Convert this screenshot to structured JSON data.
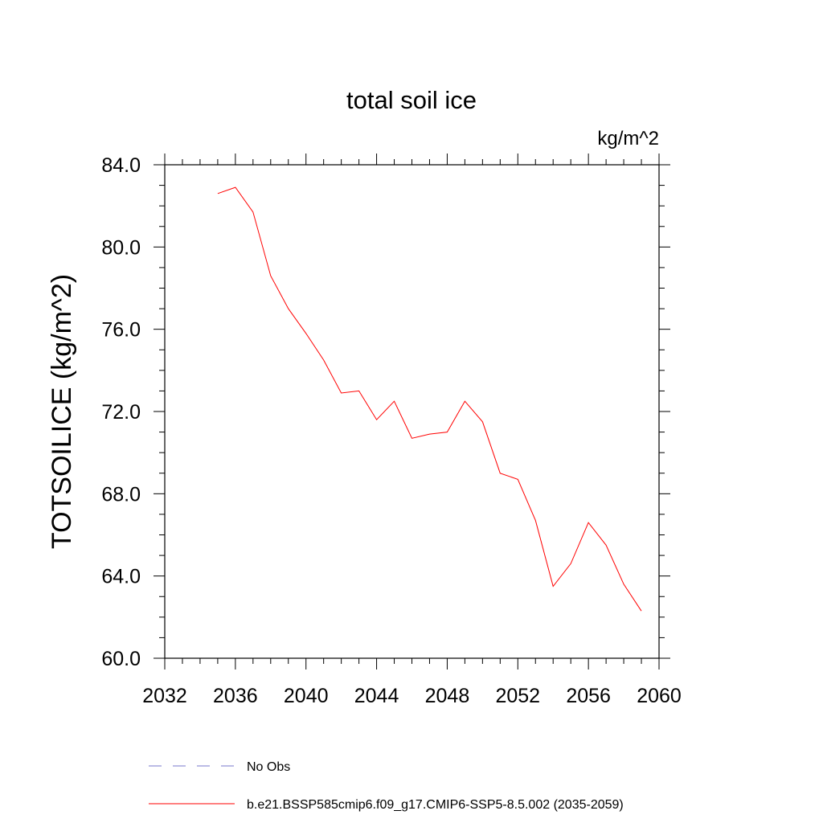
{
  "chart_data": {
    "type": "line",
    "title": "total soil ice",
    "units_label": "kg/m^2",
    "ylabel": "TOTSOILICE  (kg/m^2)",
    "xlabel": "",
    "xlim": [
      2032,
      2060
    ],
    "ylim": [
      60,
      84
    ],
    "x_ticks": [
      "2032",
      "2036",
      "2040",
      "2044",
      "2048",
      "2052",
      "2056",
      "2060"
    ],
    "y_ticks": [
      "60.0",
      "64.0",
      "68.0",
      "72.0",
      "76.0",
      "80.0",
      "84.0"
    ],
    "grid": false,
    "legend_position": "bottom",
    "series": [
      {
        "name": "b.e21.BSSP585cmip6.f09_g17.CMIP6-SSP5-8.5.002 (2035-2059)",
        "color": "#ff0000",
        "style": "solid",
        "x": [
          2035,
          2036,
          2037,
          2038,
          2039,
          2040,
          2041,
          2042,
          2043,
          2044,
          2045,
          2046,
          2047,
          2048,
          2049,
          2050,
          2051,
          2052,
          2053,
          2054,
          2055,
          2056,
          2057,
          2058,
          2059
        ],
        "y": [
          82.6,
          82.9,
          81.7,
          78.6,
          77.0,
          75.8,
          74.5,
          72.9,
          73.0,
          71.6,
          72.5,
          70.7,
          70.9,
          71.0,
          72.5,
          71.5,
          69.0,
          68.7,
          66.7,
          63.5,
          64.6,
          66.6,
          65.5,
          63.6,
          62.3
        ]
      }
    ],
    "legend": [
      {
        "label": "No Obs",
        "color": "#7a7acc",
        "style": "dashed"
      },
      {
        "label": "b.e21.BSSP585cmip6.f09_g17.CMIP6-SSP5-8.5.002 (2035-2059)",
        "color": "#ff0000",
        "style": "solid"
      }
    ]
  }
}
